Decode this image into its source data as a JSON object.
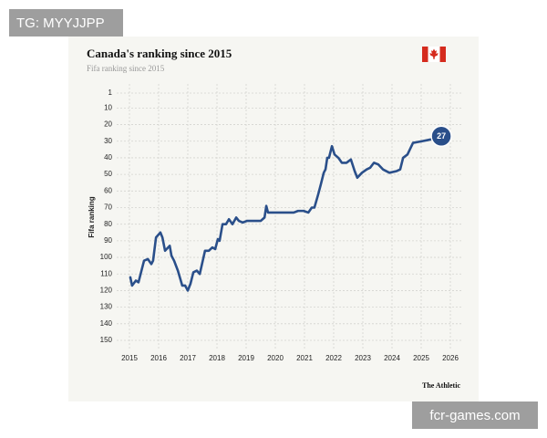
{
  "watermarks": [
    "TG: MYYJJPP",
    "fcr-games.com"
  ],
  "chart_data": {
    "type": "line",
    "title": "Canada's ranking since 2015",
    "subtitle": "Fifa ranking since 2015",
    "y_label": "Fifa ranking",
    "source": "The Athletic",
    "color": "#2a4f8a",
    "grid": true,
    "xlim": [
      2015,
      2026
    ],
    "xticks": [
      2015,
      2016,
      2017,
      2018,
      2019,
      2020,
      2021,
      2022,
      2023,
      2024,
      2025,
      2026
    ],
    "ylim": [
      150,
      1
    ],
    "yticks": [
      1,
      10,
      20,
      30,
      40,
      50,
      60,
      70,
      80,
      90,
      100,
      110,
      120,
      130,
      140,
      150
    ],
    "x": [
      2015.03,
      2015.09,
      2015.22,
      2015.31,
      2015.5,
      2015.63,
      2015.75,
      2015.81,
      2015.91,
      2016.06,
      2016.13,
      2016.22,
      2016.38,
      2016.44,
      2016.53,
      2016.66,
      2016.81,
      2016.91,
      2017.0,
      2017.09,
      2017.19,
      2017.31,
      2017.41,
      2017.5,
      2017.59,
      2017.72,
      2017.84,
      2017.94,
      2018.03,
      2018.09,
      2018.19,
      2018.31,
      2018.41,
      2018.53,
      2018.66,
      2018.75,
      2018.88,
      2019.03,
      2019.25,
      2019.5,
      2019.63,
      2019.69,
      2019.75,
      2020.09,
      2020.63,
      2020.78,
      2020.97,
      2021.13,
      2021.25,
      2021.34,
      2021.47,
      2021.56,
      2021.66,
      2021.72,
      2021.78,
      2021.84,
      2021.94,
      2022.03,
      2022.16,
      2022.28,
      2022.44,
      2022.59,
      2022.72,
      2022.81,
      2022.97,
      2023.13,
      2023.25,
      2023.38,
      2023.53,
      2023.69,
      2023.91,
      2024.16,
      2024.28,
      2024.38,
      2024.53,
      2024.72,
      2025.03,
      2025.31,
      2025.69
    ],
    "values": [
      112,
      117,
      114,
      115,
      102,
      101,
      104,
      102,
      88,
      85,
      88,
      96,
      93,
      99,
      102,
      108,
      117,
      117,
      120,
      116,
      109,
      108,
      110,
      103,
      96,
      96,
      94,
      95,
      89,
      90,
      80,
      80,
      77,
      80,
      76,
      78,
      79,
      78,
      78,
      78,
      76,
      69,
      73,
      73,
      73,
      72,
      72,
      73,
      70,
      70,
      62,
      56,
      49,
      47,
      40,
      40,
      33,
      38,
      40,
      43,
      43,
      41,
      48,
      52,
      49,
      47,
      46,
      43,
      44,
      47,
      49,
      48,
      47,
      40,
      38,
      31,
      30,
      29,
      27
    ]
  }
}
